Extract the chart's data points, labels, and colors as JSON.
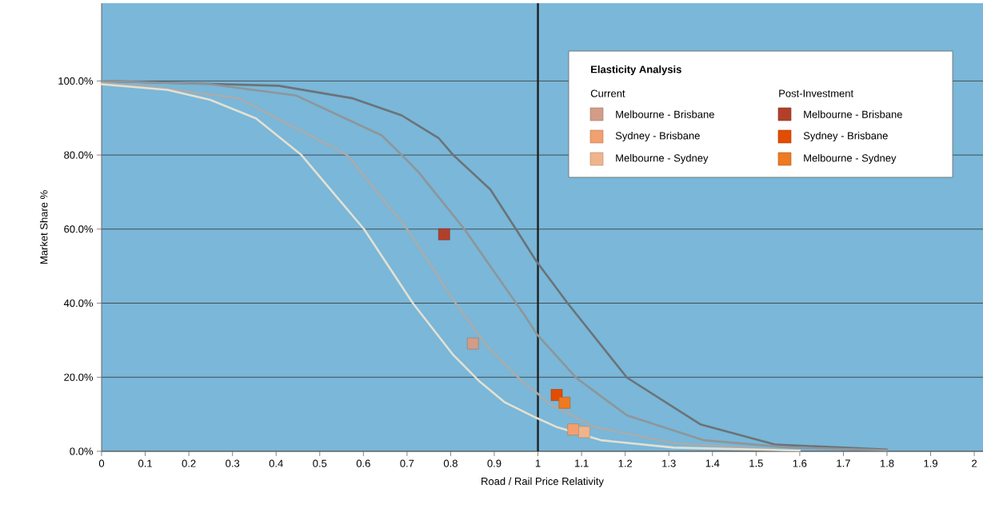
{
  "chart_data": {
    "type": "line",
    "xlabel": "Road / Rail Price Relativity",
    "ylabel": "Market Share %",
    "legend_title": "Elasticity Analysis",
    "legend": "top right",
    "grid": "y",
    "xlim": [
      0,
      2.02
    ],
    "ylim": [
      0,
      121
    ],
    "xticks": [
      0,
      0.1,
      0.2,
      0.3,
      0.4,
      0.5,
      0.6,
      0.7,
      0.8,
      0.9,
      1,
      1.1,
      1.2,
      1.3,
      1.4,
      1.5,
      1.6,
      1.7,
      1.8,
      1.9,
      2
    ],
    "yticks": [
      {
        "value": 0,
        "label": "0.0%"
      },
      {
        "value": 20,
        "label": "20.0%"
      },
      {
        "value": 40,
        "label": "40.0%"
      },
      {
        "value": 60,
        "label": "60.0%"
      },
      {
        "value": 80,
        "label": "80.0%"
      },
      {
        "value": 100,
        "label": "100.0%"
      }
    ],
    "annotations": [
      "Current",
      "Post-Investment"
    ],
    "ref_lines": [
      {
        "axis": "x",
        "value": 1,
        "color": "#1f1f1f"
      }
    ],
    "series": [
      {
        "color": "#6b7378",
        "x": [
          0,
          0.406,
          0.576,
          0.688,
          0.773,
          0.806,
          0.891,
          0.95,
          0.996,
          1.068,
          1.204,
          1.372,
          1.545,
          1.8
        ],
        "values": [
          100,
          98.7,
          95.3,
          90.7,
          84.5,
          80,
          70.7,
          59.9,
          51.4,
          40,
          19.9,
          7.3,
          1.8,
          0.5
        ]
      },
      {
        "color": "#8f9599",
        "x": [
          0,
          0.249,
          0.445,
          0.642,
          0.688,
          0.727,
          0.832,
          0.969,
          0.997,
          1.087,
          1.204,
          1.379,
          1.579,
          1.8
        ],
        "values": [
          100,
          99.1,
          96.1,
          85.3,
          80,
          75.3,
          59.9,
          36.8,
          31.7,
          19.9,
          9.7,
          3,
          1,
          0.3
        ]
      },
      {
        "color": "#a9acad",
        "x": [
          0,
          0.118,
          0.315,
          0.563,
          0.701,
          0.812,
          0.884,
          0.962,
          0.995,
          1.027,
          1.131,
          1.311,
          1.579
        ],
        "values": [
          99.5,
          98.4,
          95.3,
          80,
          59.9,
          39.9,
          28.3,
          19.1,
          16,
          12.8,
          6.5,
          2.2,
          0.2
        ]
      },
      {
        "color": "#e3e0d2",
        "x": [
          0,
          0.151,
          0.249,
          0.354,
          0.458,
          0.602,
          0.714,
          0.806,
          0.864,
          0.923,
          0.995,
          1.044,
          1.144,
          1.311,
          1.6
        ],
        "values": [
          99.1,
          97.6,
          94.9,
          89.9,
          80,
          59.9,
          39.9,
          26,
          19.1,
          13.3,
          9.1,
          6.5,
          3,
          1,
          0.2
        ]
      },
      {
        "type": "scatter",
        "marker": "square",
        "name": "Melbourne - Brisbane",
        "color": "#d39c87",
        "x": [
          0.851
        ],
        "values": [
          29.1
        ]
      },
      {
        "type": "scatter",
        "marker": "square",
        "name": "Sydney - Brisbane",
        "color": "#f2a06f",
        "x": [
          1.081
        ],
        "values": [
          5.9
        ]
      },
      {
        "type": "scatter",
        "marker": "square",
        "name": "Melbourne - Sydney",
        "color": "#f0b48c",
        "x": [
          1.106
        ],
        "values": [
          5.2
        ]
      },
      {
        "type": "scatter",
        "marker": "square",
        "name": "Melbourne - Brisbane",
        "color": "#b1402a",
        "x": [
          0.785
        ],
        "values": [
          58.6
        ]
      },
      {
        "type": "scatter",
        "marker": "square",
        "name": "Sydney - Brisbane",
        "color": "#e34c03",
        "x": [
          1.043
        ],
        "values": [
          15.2
        ]
      },
      {
        "type": "scatter",
        "marker": "square",
        "name": "Melbourne - Sydney",
        "color": "#ee7a22",
        "x": [
          1.061
        ],
        "values": [
          13.1
        ]
      }
    ]
  }
}
